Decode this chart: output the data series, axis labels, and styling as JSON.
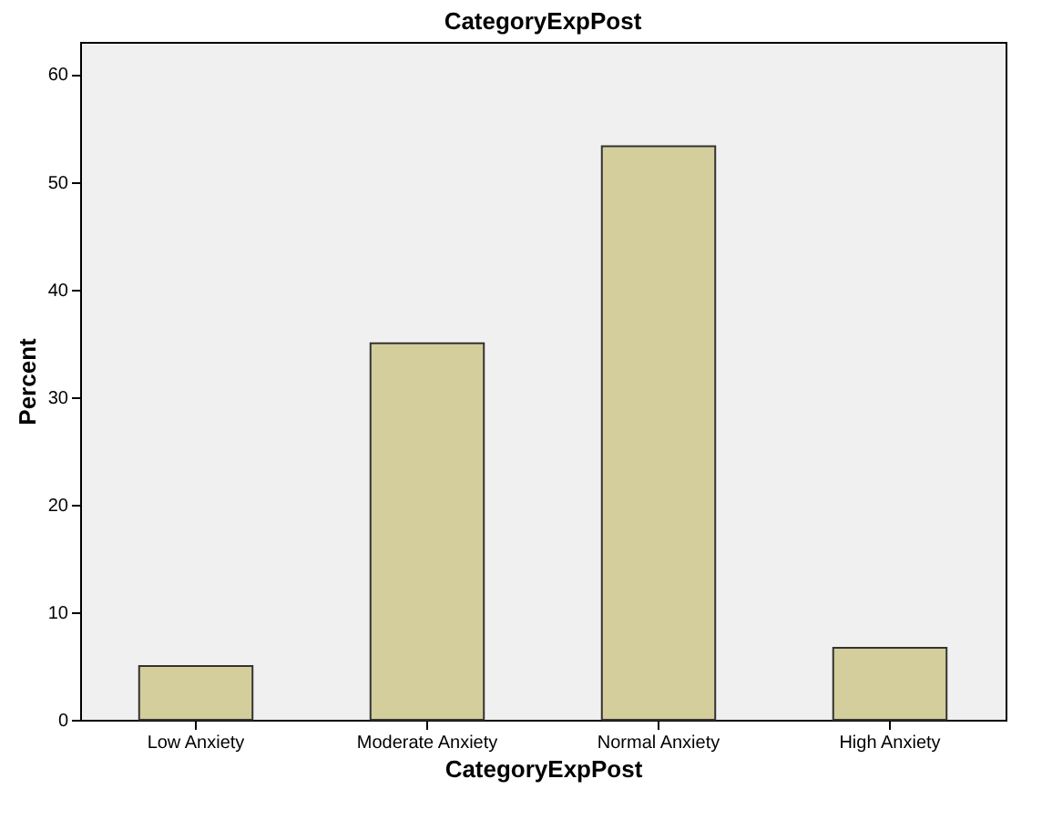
{
  "chart_data": {
    "type": "bar",
    "title": "CategoryExpPost",
    "xlabel": "CategoryExpPost",
    "ylabel": "Percent",
    "categories": [
      "Low Anxiety",
      "Moderate Anxiety",
      "Normal Anxiety",
      "High Anxiety"
    ],
    "values": [
      5.0,
      35.0,
      53.3,
      6.7
    ],
    "color": "#d3ce9b",
    "ylim": [
      0,
      63
    ],
    "yticks": [
      0,
      10,
      20,
      30,
      40,
      50,
      60
    ],
    "grid": false
  }
}
